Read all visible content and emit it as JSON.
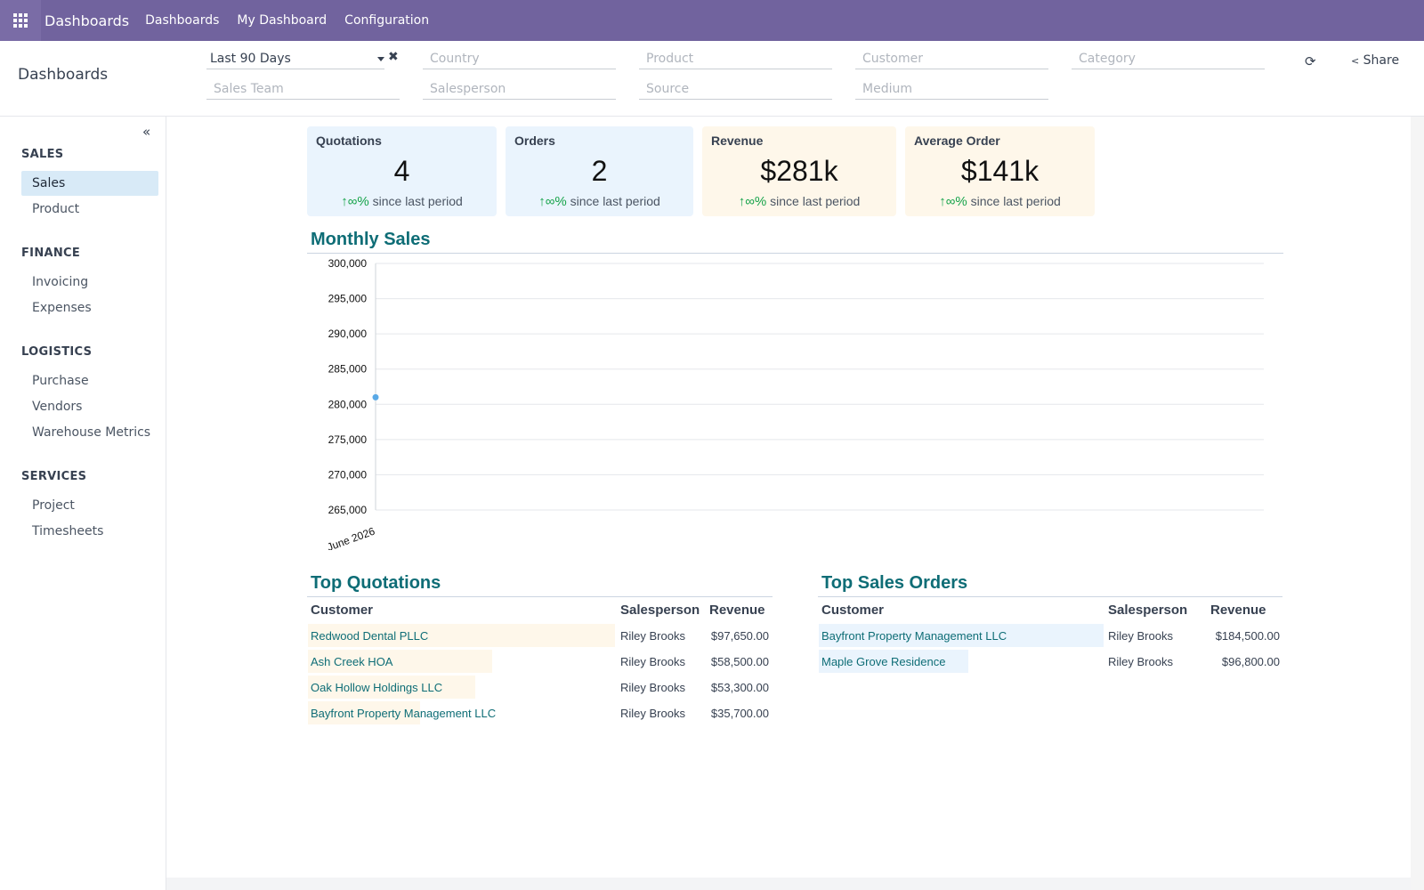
{
  "navbar": {
    "brand": "Dashboards",
    "items": [
      "Dashboards",
      "My Dashboard",
      "Configuration"
    ]
  },
  "control_panel": {
    "title": "Dashboards",
    "date_filter": "Last 90 Days",
    "filters": {
      "country": "Country",
      "product": "Product",
      "customer": "Customer",
      "category": "Category",
      "sales_team": "Sales Team",
      "salesperson": "Salesperson",
      "source": "Source",
      "medium": "Medium"
    },
    "share_label": "Share"
  },
  "sidebar": {
    "sections": [
      {
        "title": "SALES",
        "items": [
          "Sales",
          "Product"
        ]
      },
      {
        "title": "FINANCE",
        "items": [
          "Invoicing",
          "Expenses"
        ]
      },
      {
        "title": "LOGISTICS",
        "items": [
          "Purchase",
          "Vendors",
          "Warehouse Metrics"
        ]
      },
      {
        "title": "SERVICES",
        "items": [
          "Project",
          "Timesheets"
        ]
      }
    ],
    "active": "Sales"
  },
  "kpis": [
    {
      "title": "Quotations",
      "value": "4",
      "trend": "∞%",
      "trend_text": "since last period"
    },
    {
      "title": "Orders",
      "value": "2",
      "trend": "∞%",
      "trend_text": "since last period"
    },
    {
      "title": "Revenue",
      "value": "$281k",
      "trend": "∞%",
      "trend_text": "since last period"
    },
    {
      "title": "Average Order",
      "value": "$141k",
      "trend": "∞%",
      "trend_text": "since last period"
    }
  ],
  "monthly_sales": {
    "title": "Monthly Sales"
  },
  "chart_data": {
    "type": "line",
    "categories": [
      "June 2026"
    ],
    "series": [
      {
        "values": [
          281000
        ]
      }
    ],
    "ylim": [
      265000,
      300000
    ],
    "yticks": [
      "300,000",
      "295,000",
      "290,000",
      "285,000",
      "280,000",
      "275,000",
      "270,000",
      "265,000"
    ],
    "grid": true
  },
  "top_quotations": {
    "title": "Top Quotations",
    "headers": {
      "customer": "Customer",
      "salesperson": "Salesperson",
      "revenue": "Revenue"
    },
    "rows": [
      {
        "customer": "Redwood Dental PLLC",
        "salesperson": "Riley Brooks",
        "revenue": "$97,650.00",
        "amount": 97650
      },
      {
        "customer": "Ash Creek HOA",
        "salesperson": "Riley Brooks",
        "revenue": "$58,500.00",
        "amount": 58500
      },
      {
        "customer": "Oak Hollow Holdings LLC",
        "salesperson": "Riley Brooks",
        "revenue": "$53,300.00",
        "amount": 53300
      },
      {
        "customer": "Bayfront Property Management LLC",
        "salesperson": "Riley Brooks",
        "revenue": "$35,700.00",
        "amount": 35700
      }
    ]
  },
  "top_sales_orders": {
    "title": "Top Sales Orders",
    "headers": {
      "customer": "Customer",
      "salesperson": "Salesperson",
      "revenue": "Revenue"
    },
    "rows": [
      {
        "customer": "Bayfront Property Management LLC",
        "salesperson": "Riley Brooks",
        "revenue": "$184,500.00",
        "amount": 184500
      },
      {
        "customer": "Maple Grove Residence",
        "salesperson": "Riley Brooks",
        "revenue": "$96,800.00",
        "amount": 96800
      }
    ]
  },
  "colors": {
    "navbar": "#71639e",
    "accent": "#0e6d76",
    "kpi_blue": "#eaf4fd",
    "kpi_cream": "#fef7ea",
    "trend_up": "#16a34a",
    "point": "#5aa9e6"
  }
}
